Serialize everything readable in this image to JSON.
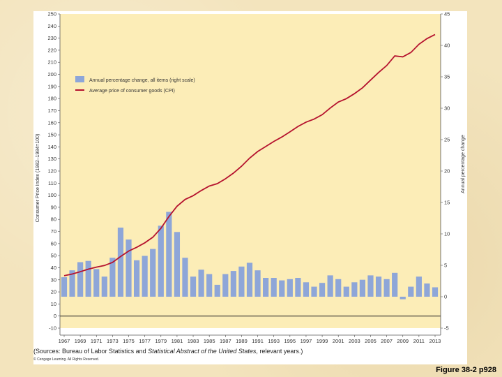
{
  "chart_data": {
    "type": "bar+line",
    "title": "",
    "x": [
      1967,
      1968,
      1969,
      1970,
      1971,
      1972,
      1973,
      1974,
      1975,
      1976,
      1977,
      1978,
      1979,
      1980,
      1981,
      1982,
      1983,
      1984,
      1985,
      1986,
      1987,
      1988,
      1989,
      1990,
      1991,
      1992,
      1993,
      1994,
      1995,
      1996,
      1997,
      1998,
      1999,
      2000,
      2001,
      2002,
      2003,
      2004,
      2005,
      2006,
      2007,
      2008,
      2009,
      2010,
      2011,
      2012,
      2013
    ],
    "x_tick_labels": [
      "1967",
      "1969",
      "1971",
      "1973",
      "1975",
      "1977",
      "1979",
      "1981",
      "1983",
      "1985",
      "1987",
      "1989",
      "1991",
      "1993",
      "1995",
      "1997",
      "1999",
      "2001",
      "2003",
      "2005",
      "2007",
      "2009",
      "2011",
      "2013"
    ],
    "series": [
      {
        "name": "Annual percentage change, all items (right scale)",
        "kind": "bar",
        "axis": "right",
        "color": "#8ea6d8",
        "values": [
          3.1,
          4.2,
          5.5,
          5.7,
          4.4,
          3.2,
          6.2,
          11.0,
          9.1,
          5.8,
          6.5,
          7.6,
          11.3,
          13.5,
          10.3,
          6.2,
          3.2,
          4.3,
          3.6,
          1.9,
          3.6,
          4.1,
          4.8,
          5.4,
          4.2,
          3.0,
          3.0,
          2.6,
          2.8,
          3.0,
          2.3,
          1.6,
          2.2,
          3.4,
          2.8,
          1.6,
          2.3,
          2.7,
          3.4,
          3.2,
          2.8,
          3.8,
          -0.4,
          1.6,
          3.2,
          2.1,
          1.5
        ]
      },
      {
        "name": "Average price of consumer goods (CPI)",
        "kind": "line",
        "axis": "left",
        "color": "#b5122e",
        "values": [
          33.4,
          34.8,
          36.7,
          38.8,
          40.5,
          41.8,
          44.4,
          49.3,
          53.8,
          56.9,
          60.6,
          65.2,
          72.6,
          82.4,
          90.9,
          96.5,
          99.6,
          103.9,
          107.6,
          109.6,
          113.6,
          118.3,
          124.0,
          130.7,
          136.2,
          140.3,
          144.5,
          148.2,
          152.4,
          156.9,
          160.5,
          163.0,
          166.6,
          172.2,
          177.1,
          179.9,
          184.0,
          188.9,
          195.3,
          201.6,
          207.3,
          215.3,
          214.5,
          218.1,
          224.9,
          229.6,
          233.0
        ]
      }
    ],
    "left_axis": {
      "label": "Consumer Price Index (1982–1984=100)",
      "ylim": [
        -10,
        250
      ],
      "ticks": [
        -10,
        0,
        10,
        20,
        30,
        40,
        50,
        60,
        70,
        80,
        90,
        100,
        110,
        120,
        130,
        140,
        150,
        160,
        170,
        180,
        190,
        200,
        210,
        220,
        230,
        240,
        250
      ]
    },
    "right_axis": {
      "label": "Annual percentage change",
      "ylim": [
        -5,
        45
      ],
      "ticks": [
        -5,
        0,
        5,
        10,
        15,
        20,
        25,
        30,
        35,
        40,
        45
      ]
    },
    "legend": {
      "placement": "top-left",
      "entries": [
        "Annual percentage change, all items (right scale)",
        "Average price of consumer goods (CPI)"
      ]
    },
    "plot_background": "#fcedb7",
    "grid": false
  },
  "sources_prefix": "(Sources: Bureau of Labor Statistics and ",
  "sources_italic": "Statistical Abstract of the United States",
  "sources_suffix": ", relevant years.)",
  "copyright": "© Cengage Learning. All Rights Reserved.",
  "figure_label": "Figure 38-2 p928"
}
